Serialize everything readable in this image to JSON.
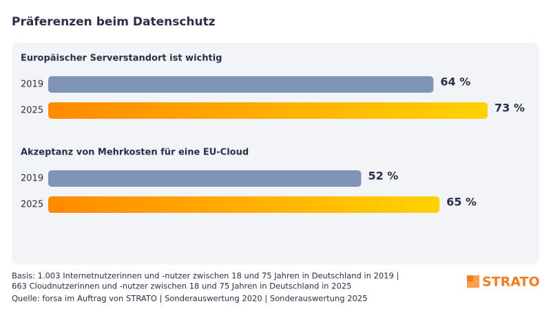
{
  "header": {
    "title": "Präferenzen beim Datenschutz"
  },
  "chart_data": [
    {
      "type": "bar",
      "orientation": "horizontal",
      "title": "Europäischer Serverstandort ist wichtig",
      "categories": [
        "2019",
        "2025"
      ],
      "values": [
        64,
        73
      ],
      "value_labels": [
        "64 %",
        "73 %"
      ],
      "colors": [
        {
          "from": "#8094b8",
          "to": "#8094b8"
        },
        {
          "from": "#ff8a00",
          "to": "#ffd200"
        }
      ]
    },
    {
      "type": "bar",
      "orientation": "horizontal",
      "title": "Akzeptanz von Mehrkosten für eine EU-Cloud",
      "categories": [
        "2019",
        "2025"
      ],
      "values": [
        52,
        65
      ],
      "value_labels": [
        "52 %",
        "65 %"
      ],
      "colors": [
        {
          "from": "#8094b8",
          "to": "#8094b8"
        },
        {
          "from": "#ff8a00",
          "to": "#ffd200"
        }
      ]
    }
  ],
  "footer": {
    "lines": [
      "Basis: 1.003 Internetnutzerinnen und -nutzer zwischen 18 und 75 Jahren in Deutschland in 2019 |",
      "663 Cloudnutzerinnen und -nutzer zwischen 18 und 75 Jahren in Deutschland in 2025",
      "Quelle: forsa im Auftrag von STRATO | Sonderauswertung 2020 | Sonderauswertung 2025"
    ],
    "logo": "STRATO"
  }
}
